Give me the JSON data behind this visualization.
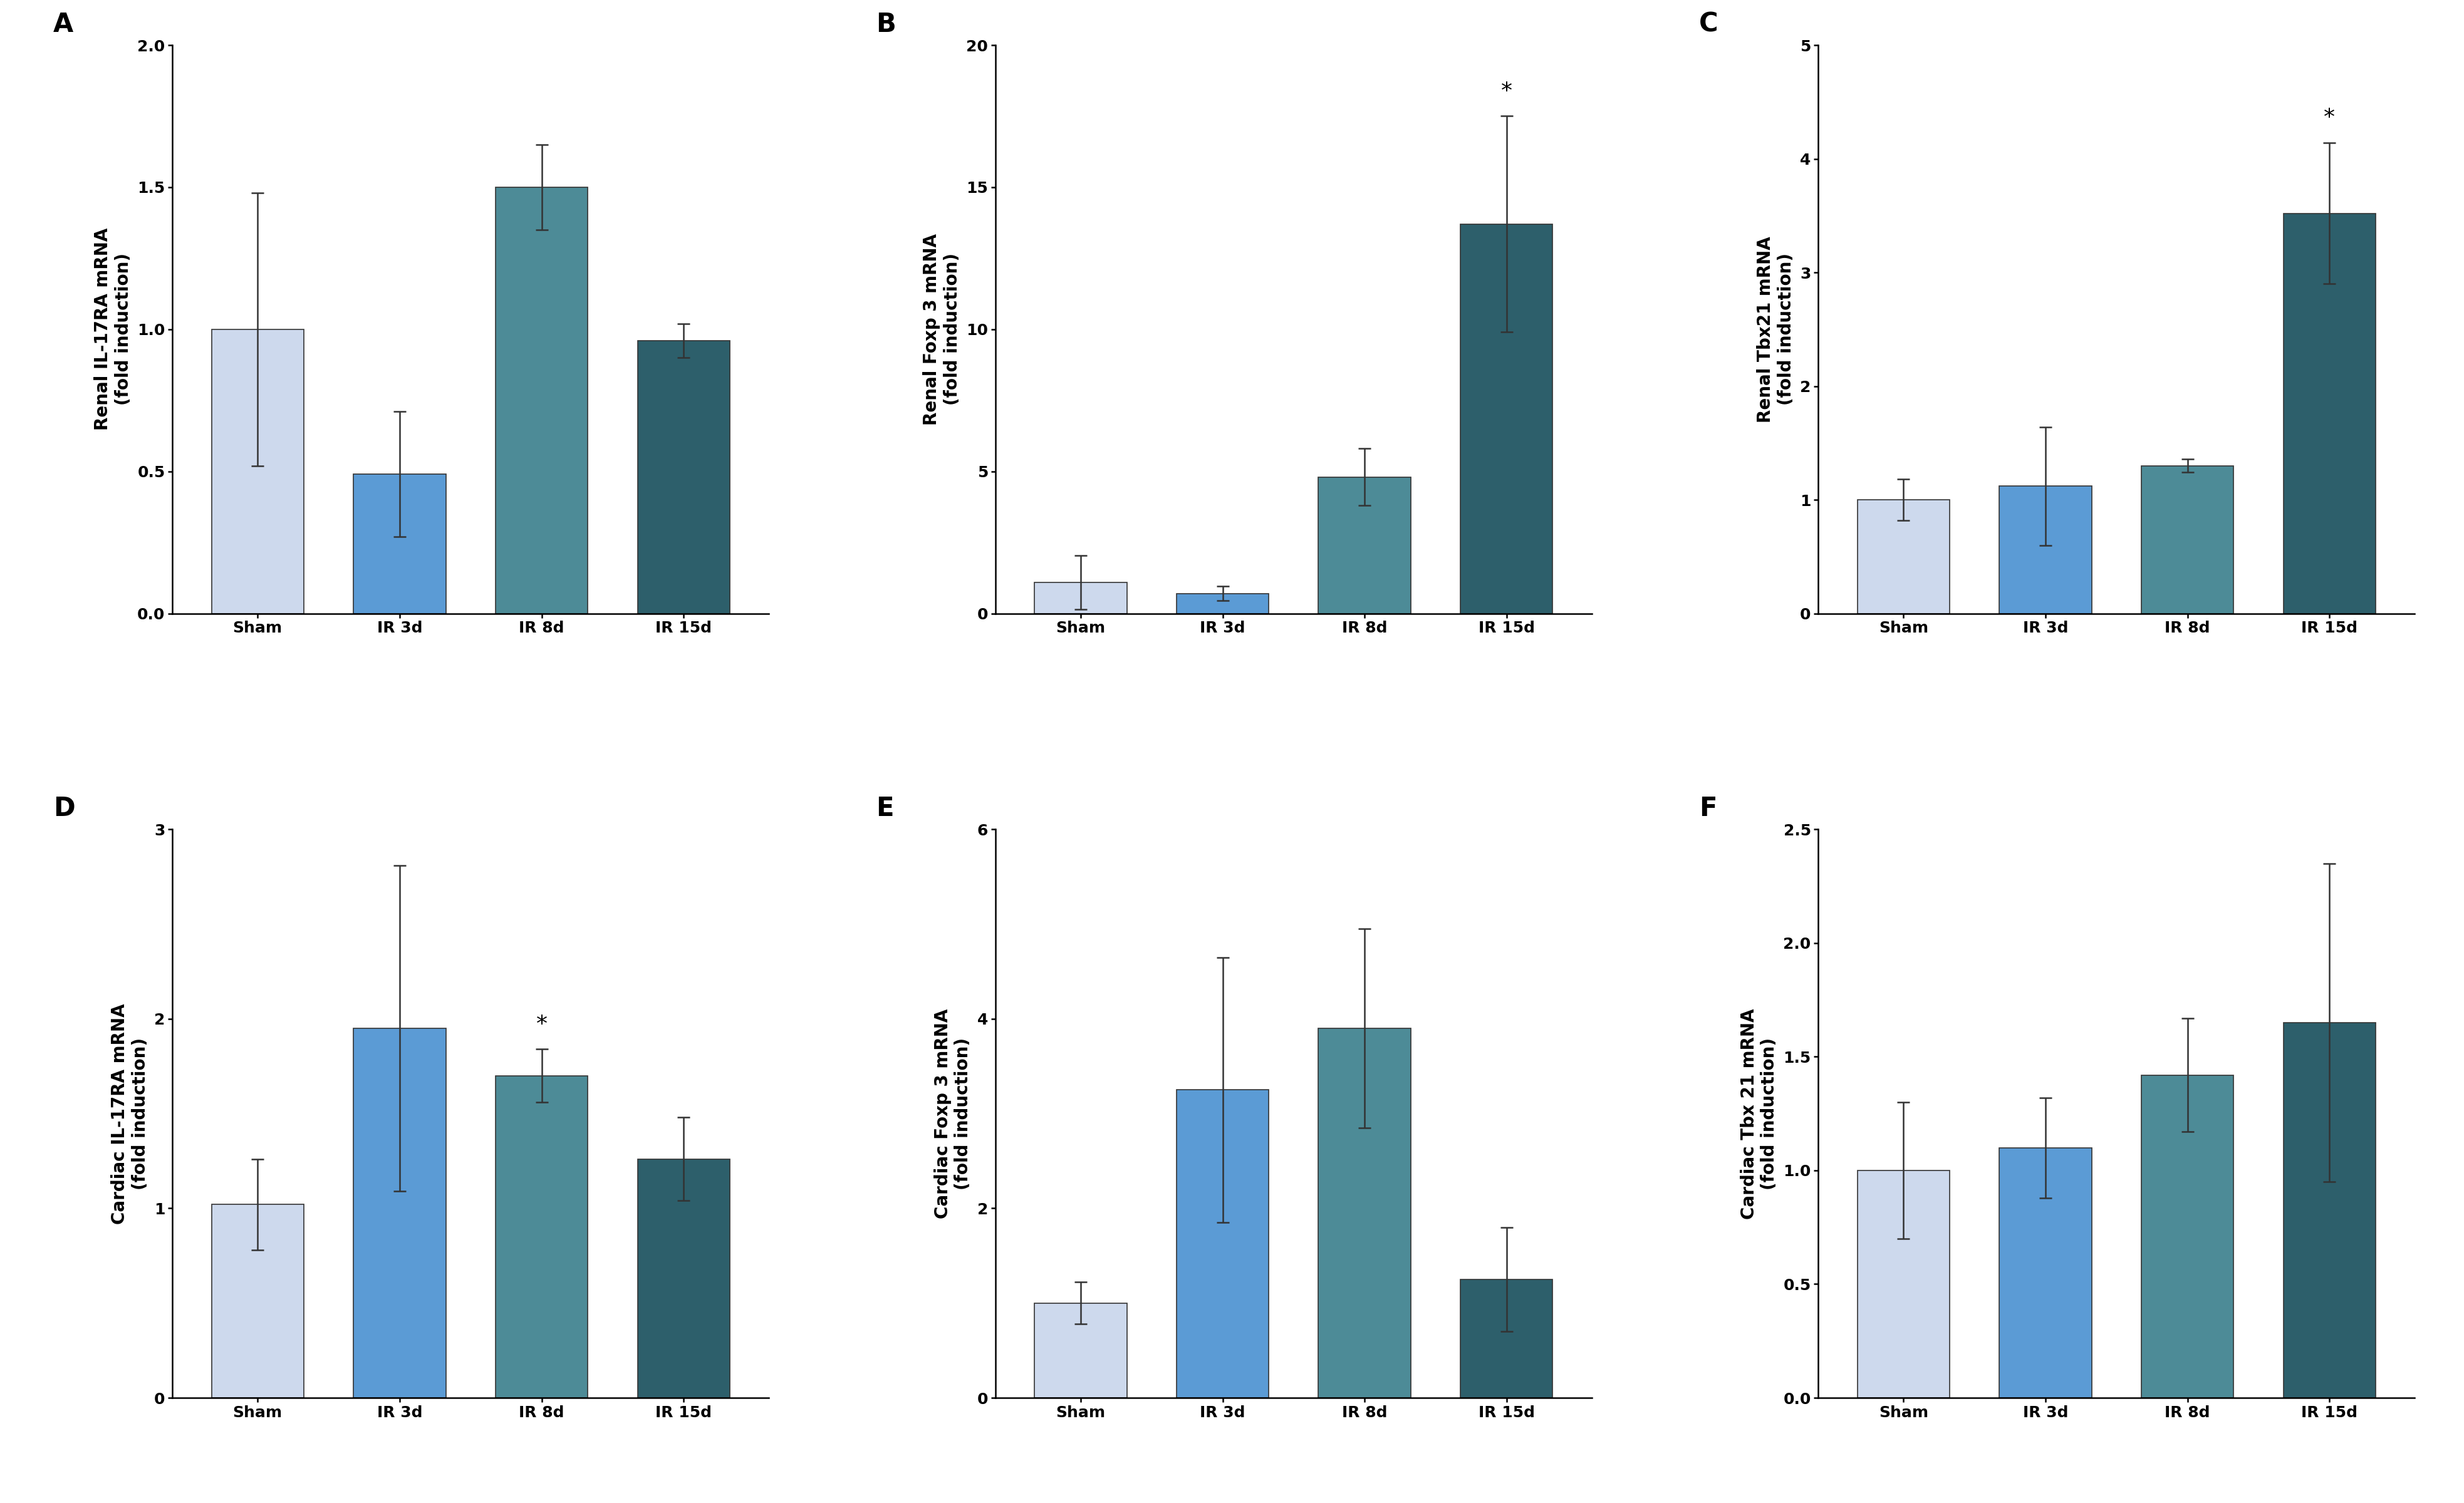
{
  "panels": [
    {
      "label": "A",
      "ylabel": "Renal IL-17RA mRNA\n(fold induction)",
      "categories": [
        "Sham",
        "IR 3d",
        "IR 8d",
        "IR 15d"
      ],
      "values": [
        1.0,
        0.49,
        1.5,
        0.96
      ],
      "errors": [
        0.48,
        0.22,
        0.15,
        0.06
      ],
      "ylim": [
        0,
        2.0
      ],
      "yticks": [
        0.0,
        0.5,
        1.0,
        1.5,
        2.0
      ],
      "ytick_labels": [
        "0.0",
        "0.5",
        "1.0",
        "1.5",
        "2.0"
      ],
      "asterisk_pos": []
    },
    {
      "label": "B",
      "ylabel": "Renal Foxp 3 mRNA\n(fold induction)",
      "categories": [
        "Sham",
        "IR 3d",
        "IR 8d",
        "IR 15d"
      ],
      "values": [
        1.1,
        0.7,
        4.8,
        13.7
      ],
      "errors": [
        0.95,
        0.25,
        1.0,
        3.8
      ],
      "ylim": [
        0,
        20
      ],
      "yticks": [
        0,
        5,
        10,
        15,
        20
      ],
      "ytick_labels": [
        "0",
        "5",
        "10",
        "15",
        "20"
      ],
      "asterisk_pos": [
        3
      ]
    },
    {
      "label": "C",
      "ylabel": "Renal Tbx21 mRNA\n(fold induction)",
      "categories": [
        "Sham",
        "IR 3d",
        "IR 8d",
        "IR 15d"
      ],
      "values": [
        1.0,
        1.12,
        1.3,
        3.52
      ],
      "errors": [
        0.18,
        0.52,
        0.06,
        0.62
      ],
      "ylim": [
        0,
        5
      ],
      "yticks": [
        0,
        1,
        2,
        3,
        4,
        5
      ],
      "ytick_labels": [
        "0",
        "1",
        "2",
        "3",
        "4",
        "5"
      ],
      "asterisk_pos": [
        3
      ]
    },
    {
      "label": "D",
      "ylabel": "Cardiac IL-17RA mRNA\n(fold induction)",
      "categories": [
        "Sham",
        "IR 3d",
        "IR 8d",
        "IR 15d"
      ],
      "values": [
        1.02,
        1.95,
        1.7,
        1.26
      ],
      "errors": [
        0.24,
        0.86,
        0.14,
        0.22
      ],
      "ylim": [
        0,
        3
      ],
      "yticks": [
        0,
        1,
        2,
        3
      ],
      "ytick_labels": [
        "0",
        "1",
        "2",
        "3"
      ],
      "asterisk_pos": [
        2
      ]
    },
    {
      "label": "E",
      "ylabel": "Cardiac Foxp 3 mRNA\n(fold induction)",
      "categories": [
        "Sham",
        "IR 3d",
        "IR 8d",
        "IR 15d"
      ],
      "values": [
        1.0,
        3.25,
        3.9,
        1.25
      ],
      "errors": [
        0.22,
        1.4,
        1.05,
        0.55
      ],
      "ylim": [
        0,
        6
      ],
      "yticks": [
        0,
        2,
        4,
        6
      ],
      "ytick_labels": [
        "0",
        "2",
        "4",
        "6"
      ],
      "asterisk_pos": []
    },
    {
      "label": "F",
      "ylabel": "Cardiac Tbx 21 mRNA\n(fold induction)",
      "categories": [
        "Sham",
        "IR 3d",
        "IR 8d",
        "IR 15d"
      ],
      "values": [
        1.0,
        1.1,
        1.42,
        1.65
      ],
      "errors": [
        0.3,
        0.22,
        0.25,
        0.7
      ],
      "ylim": [
        0,
        2.5
      ],
      "yticks": [
        0.0,
        0.5,
        1.0,
        1.5,
        2.0,
        2.5
      ],
      "ytick_labels": [
        "0.0",
        "0.5",
        "1.0",
        "1.5",
        "2.0",
        "2.5"
      ],
      "asterisk_pos": []
    }
  ],
  "bar_colors": [
    "#cdd9ed",
    "#5b9bd5",
    "#4d8b97",
    "#2d5f6b"
  ],
  "edge_color": "#333333",
  "error_color": "#333333",
  "background_color": "#ffffff",
  "label_fontsize": 20,
  "tick_fontsize": 18,
  "panel_label_fontsize": 30,
  "asterisk_fontsize": 26,
  "bar_width": 0.65,
  "fig_width": 39.33,
  "fig_height": 24.0
}
